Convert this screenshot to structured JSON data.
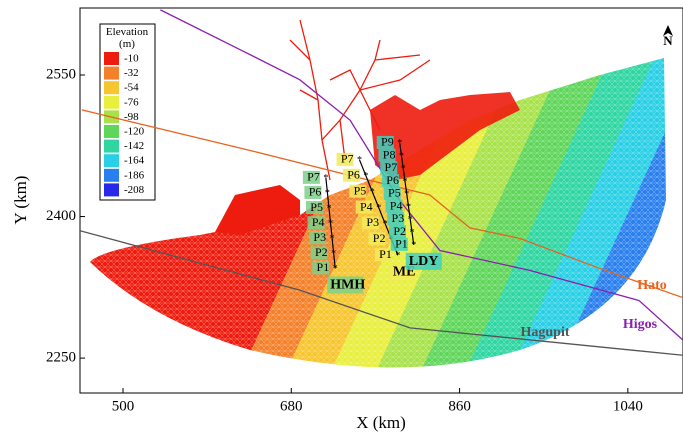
{
  "chart_data": {
    "type": "map",
    "x_label": "X (km)",
    "y_label": "Y (km)",
    "xlim": [
      454,
      1099
    ],
    "ylim": [
      2213,
      2621
    ],
    "xticks": [
      500,
      680,
      860,
      1040
    ],
    "yticks": [
      2250,
      2400,
      2550
    ],
    "north": "N",
    "legend": {
      "title": "Elevation (m)",
      "labels": [
        "-10",
        "-32",
        "-54",
        "-76",
        "-98",
        "-120",
        "-142",
        "-164",
        "-186",
        "-208"
      ],
      "colors": [
        "#ee1c0e",
        "#f4802a",
        "#f7c52e",
        "#e8ef3c",
        "#a8e24a",
        "#5fd65a",
        "#2fd6a2",
        "#29cfe4",
        "#2a7fef",
        "#2828e8"
      ]
    },
    "series": [
      {
        "name": "Hato",
        "color": "#e8641e",
        "x": [
          456,
          636,
          753,
          828,
          871,
          924,
          1010,
          1099
        ],
        "y": [
          2513,
          2470,
          2441,
          2423,
          2388,
          2377,
          2345,
          2314
        ]
      },
      {
        "name": "Higos",
        "color": "#8a1fb0",
        "x": [
          540,
          625,
          689,
          743,
          796,
          839,
          935,
          1052,
          1099
        ],
        "y": [
          2619,
          2577,
          2545,
          2502,
          2417,
          2364,
          2343,
          2311,
          2269
        ]
      },
      {
        "name": "Hagupit",
        "color": "#555555",
        "x": [
          454,
          689,
          807,
          1099
        ],
        "y": [
          2385,
          2322,
          2282,
          2253
        ]
      }
    ],
    "transects": [
      {
        "name": "HMH",
        "color": "#7ed08a",
        "start": [
          727,
          2345
        ],
        "end": [
          717,
          2441
        ],
        "points": [
          "P1",
          "P2",
          "P3",
          "P4",
          "P5",
          "P6",
          "P7"
        ]
      },
      {
        "name": "ME",
        "color": "#f2ea5a",
        "start": [
          794,
          2359
        ],
        "end": [
          753,
          2460
        ],
        "points": [
          "P1",
          "P2",
          "P3",
          "P4",
          "P5",
          "P6",
          "P7"
        ]
      },
      {
        "name": "LDY",
        "color": "#3fd0c0",
        "start": [
          811,
          2370
        ],
        "end": [
          796,
          2478
        ],
        "points": [
          "P1",
          "P2",
          "P3",
          "P4",
          "P5",
          "P6",
          "P7",
          "P8",
          "P9"
        ]
      }
    ]
  }
}
